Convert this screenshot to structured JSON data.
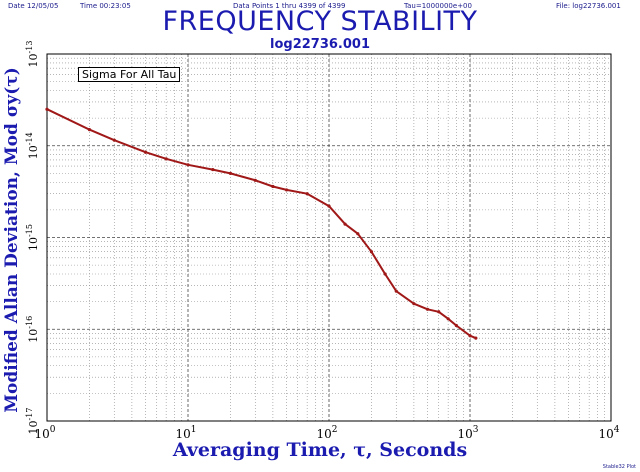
{
  "header": {
    "date": "Date  12/05/05",
    "time": "Time  00:23:05",
    "points": "Data Points 1 thru 4399 of 4399",
    "tau": "Tau=1000000e+00",
    "file": "File: log22736.001"
  },
  "footer_note": "Stable32 Plot",
  "chart_data": {
    "type": "line",
    "title": "FREQUENCY STABILITY",
    "subtitle": "log22736.001",
    "xlabel": "Averaging Time, τ, Seconds",
    "ylabel": "Modified Allan Deviation, Mod σy(τ)",
    "x_scale": "log",
    "y_scale": "log",
    "xlim": [
      1,
      10000
    ],
    "ylim": [
      1e-17,
      1e-13
    ],
    "x_ticks": [
      1,
      10,
      100,
      1000,
      10000
    ],
    "x_tick_labels": [
      "10^0",
      "10^1",
      "10^2",
      "10^3",
      "10^4"
    ],
    "y_ticks": [
      1e-17,
      1e-16,
      1e-15,
      1e-14,
      1e-13
    ],
    "y_tick_labels": [
      "10^-17",
      "10^-16",
      "10^-15",
      "10^-14",
      "10^-13"
    ],
    "grid": true,
    "legend": "Sigma For All Tau",
    "legend_position": "top-left",
    "series": [
      {
        "color": "#a01818",
        "x": [
          1,
          2,
          3,
          5,
          7,
          10,
          15,
          20,
          30,
          40,
          50,
          70,
          100,
          130,
          160,
          200,
          250,
          300,
          400,
          500,
          600,
          700,
          800,
          1000,
          1100
        ],
        "y": [
          2.5e-14,
          1.5e-14,
          1.15e-14,
          8.5e-15,
          7.2e-15,
          6.2e-15,
          5.5e-15,
          5e-15,
          4.2e-15,
          3.6e-15,
          3.3e-15,
          3e-15,
          2.2e-15,
          1.4e-15,
          1.1e-15,
          7e-16,
          4e-16,
          2.6e-16,
          1.9e-16,
          1.65e-16,
          1.55e-16,
          1.3e-16,
          1.1e-16,
          8.5e-17,
          8e-17
        ]
      }
    ]
  }
}
